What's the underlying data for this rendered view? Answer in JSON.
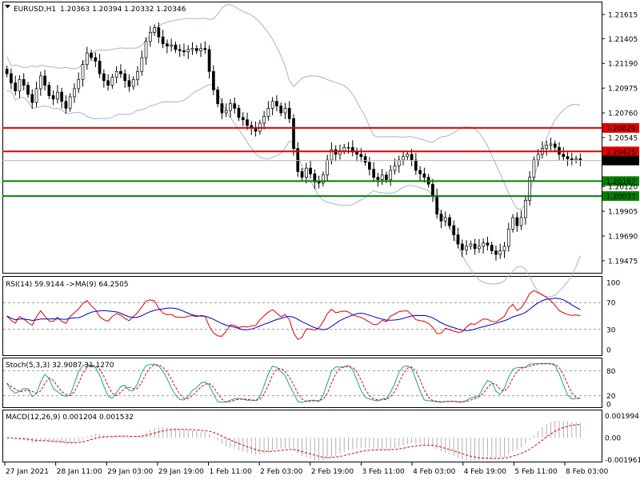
{
  "chart_data": {
    "type": "candlestick",
    "symbol_header": "EURUSD,H1",
    "ohlc_header": "1.20363 1.20394 1.20332 1.20346",
    "price_ticks": [
      "1.21615",
      "1.21405",
      "1.21190",
      "1.20975",
      "1.20760",
      "1.20545",
      "1.20335",
      "1.20120",
      "1.19905",
      "1.19690",
      "1.19475"
    ],
    "price_range": [
      1.1937,
      1.2172
    ],
    "time_labels": [
      "27 Jan 2021",
      "28 Jan 11:00",
      "29 Jan 03:00",
      "29 Jan 19:00",
      "1 Feb 11:00",
      "2 Feb 03:00",
      "2 Feb 19:00",
      "3 Feb 11:00",
      "4 Feb 03:00",
      "4 Feb 19:00",
      "5 Feb 11:00",
      "8 Feb 03:00"
    ],
    "levels": [
      {
        "value": 1.20629,
        "label": "1.20629",
        "color": "#e00000"
      },
      {
        "value": 1.20425,
        "label": "1.20425",
        "color": "#e00000"
      },
      {
        "value": 1.20167,
        "label": "1.20167",
        "color": "#008000"
      },
      {
        "value": 1.20037,
        "label": "1.20037",
        "color": "#008000"
      }
    ],
    "current_price": {
      "value": 1.20346,
      "label": "1.20346"
    },
    "close_series": [
      1.211,
      1.2102,
      1.2095,
      1.2105,
      1.21,
      1.2092,
      1.2085,
      1.2097,
      1.2108,
      1.21,
      1.2091,
      1.2088,
      1.2094,
      1.2086,
      1.208,
      1.209,
      1.2097,
      1.2105,
      1.2118,
      1.2128,
      1.2124,
      1.2121,
      1.211,
      1.2104,
      1.21,
      1.2107,
      1.2112,
      1.211,
      1.2104,
      1.2099,
      1.2105,
      1.2112,
      1.2124,
      1.2138,
      1.2146,
      1.215,
      1.2142,
      1.2136,
      1.2134,
      1.2135,
      1.2131,
      1.213,
      1.2129,
      1.2131,
      1.2132,
      1.213,
      1.2132,
      1.2131,
      1.2112,
      1.2096,
      1.2084,
      1.2076,
      1.2078,
      1.2084,
      1.208,
      1.2072,
      1.207,
      1.2065,
      1.2063,
      1.206,
      1.2067,
      1.2073,
      1.208,
      1.2086,
      1.2082,
      1.2076,
      1.208,
      1.2071,
      1.2045,
      1.2025,
      1.202,
      1.2028,
      1.2023,
      1.2016,
      1.2015,
      1.2022,
      1.2035,
      1.2044,
      1.204,
      1.2043,
      1.2046,
      1.2046,
      1.2042,
      1.204,
      1.2038,
      1.2033,
      1.2027,
      1.202,
      1.2018,
      1.2022,
      1.2018,
      1.2026,
      1.203,
      1.2035,
      1.2038,
      1.204,
      1.2035,
      1.2026,
      1.2023,
      1.202,
      1.2014,
      1.2004,
      1.1988,
      1.1982,
      1.1985,
      1.1978,
      1.197,
      1.1962,
      1.1957,
      1.196,
      1.1962,
      1.1958,
      1.196,
      1.1963,
      1.1961,
      1.1956,
      1.1953,
      1.1956,
      1.196,
      1.1975,
      1.1985,
      1.1978,
      1.1985,
      1.2,
      1.202,
      1.2035,
      1.204,
      1.2045,
      1.2048,
      1.2049,
      1.2046,
      1.204,
      1.2038,
      1.2036,
      1.2035,
      1.2036,
      1.2035
    ],
    "rsi": {
      "label": "RSI(14) 59.9144  ->MA(9) 64.2505",
      "ticks": [
        "100",
        "70",
        "30",
        "0"
      ],
      "levels": [
        70,
        30
      ]
    },
    "stoch": {
      "label": "Stoch(5,3,3) 32.9087 31.1270",
      "ticks": [
        "80",
        "20",
        "0"
      ],
      "levels": [
        80,
        20
      ]
    },
    "macd": {
      "label": "MACD(12,26,9) 0.001204 0.001532",
      "ticks": [
        "0.001994",
        "0.00",
        "-0.001961"
      ],
      "range": [
        -0.002,
        0.0021
      ]
    },
    "grid": false
  }
}
